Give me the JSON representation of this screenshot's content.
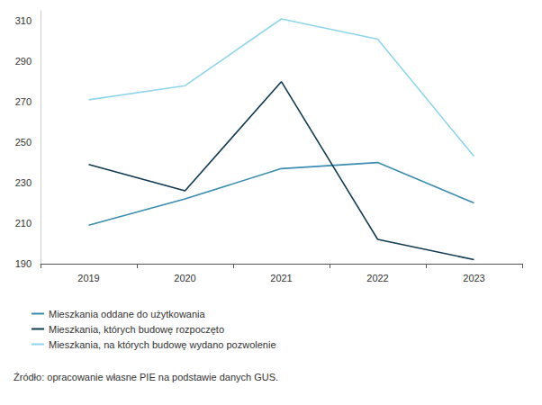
{
  "chart_data": {
    "type": "line",
    "categories": [
      "2019",
      "2020",
      "2021",
      "2022",
      "2023"
    ],
    "series": [
      {
        "name": "Mieszkania oddane do użytkowania",
        "color": "#3b8db0",
        "values": [
          209,
          222,
          237,
          240,
          220
        ]
      },
      {
        "name": "Mieszkania, których budowę rozpoczęto",
        "color": "#0f3a52",
        "values": [
          239,
          226,
          280,
          202,
          192
        ]
      },
      {
        "name": "Mieszkania, na których budowę wydano pozwolenie",
        "color": "#8fd6ec",
        "values": [
          271,
          278,
          311,
          301,
          243
        ]
      }
    ],
    "ylim": [
      190,
      315
    ],
    "yticks": [
      190,
      210,
      230,
      250,
      270,
      290,
      310
    ],
    "grid": false,
    "legend": "bottom-left",
    "annotations": [
      "Źródło: opracowanie własne PIE na podstawie danych GUS."
    ]
  }
}
